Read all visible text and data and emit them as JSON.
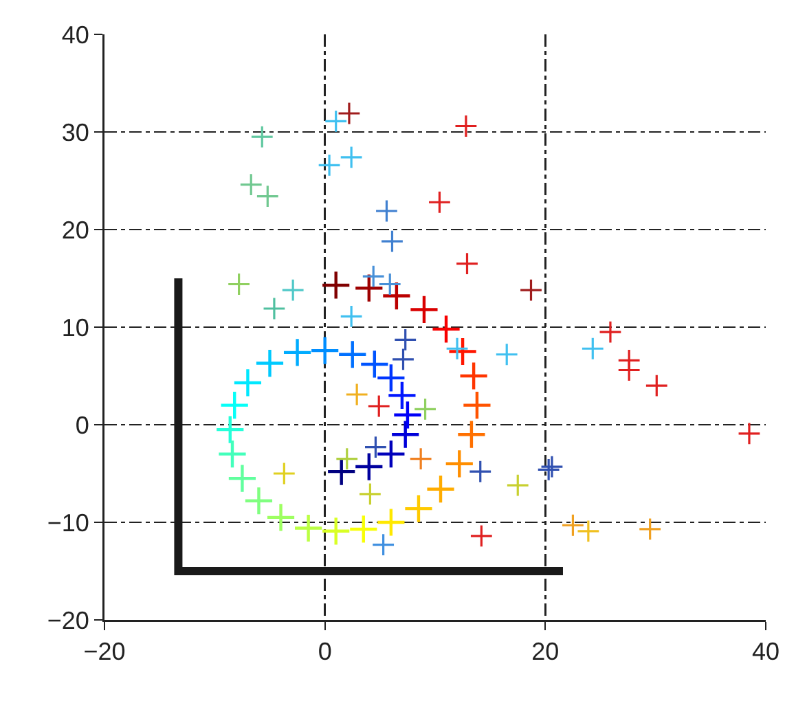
{
  "chart_data": {
    "type": "scatter",
    "marker": "cross",
    "grid": true,
    "xlim": [
      -20,
      40
    ],
    "xticks": [
      {
        "value": -20,
        "label": "−20"
      },
      0,
      20,
      40
    ],
    "ylim": [
      -20,
      40
    ],
    "yticks": [
      {
        "value": -20,
        "label": "−20"
      },
      {
        "value": -10,
        "label": "−10"
      },
      0,
      10,
      20,
      30,
      40
    ],
    "series": [
      {
        "type": "line",
        "marker": "none",
        "color": "#1a1a1a",
        "x": [
          -13.3,
          -13.3,
          21.6
        ],
        "values": [
          15,
          -15,
          -15
        ]
      },
      {
        "x": [
          1.5,
          4,
          6,
          7.3,
          7.5,
          7,
          6,
          4.5,
          2.5,
          0,
          -2.5,
          -5,
          -7,
          -8.2,
          -8.6,
          -8.4,
          -7.5,
          -6,
          -4,
          -1.5,
          1,
          3.5,
          6,
          8.5,
          10.5,
          12.2,
          13.3,
          13.8,
          13.5,
          12.5,
          11,
          9,
          6.5,
          4,
          1
        ],
        "values": [
          -4.8,
          -4.3,
          -3,
          -1,
          1,
          3,
          4.8,
          6.2,
          7.2,
          7.6,
          7.4,
          6.3,
          4.3,
          2,
          -0.5,
          -3,
          -5.5,
          -7.8,
          -9.5,
          -10.6,
          -10.9,
          -10.7,
          -10,
          -8.6,
          -6.6,
          -4,
          -1,
          2,
          5,
          7.5,
          9.8,
          11.8,
          13.2,
          14,
          14.3
        ],
        "colors": [
          "#000080",
          "#00009e",
          "#0000bb",
          "#0000d9",
          "#0000f8",
          "#0016ff",
          "#0035ff",
          "#0053ff",
          "#0070ff",
          "#008eff",
          "#00acff",
          "#00caff",
          "#00e8ff",
          "#07fff8",
          "#25ffd9",
          "#43ffbb",
          "#61ff9e",
          "#80ff80",
          "#9eff61",
          "#bbff43",
          "#d9ff25",
          "#f8ff07",
          "#ffe800",
          "#ffca00",
          "#ffac00",
          "#ff8e00",
          "#ff7000",
          "#ff5300",
          "#ff3500",
          "#ff1600",
          "#f80000",
          "#d90000",
          "#bb0000",
          "#9e0000",
          "#800000"
        ]
      },
      {
        "x": [
          2.2,
          1.0,
          -5.7,
          0.4,
          2.4,
          -6.7,
          -5.2,
          5.6,
          6.1,
          10.4,
          12.8,
          12.9,
          18.7,
          25.9,
          -7.8,
          -2.9,
          -4.6,
          2.4,
          4.4,
          5.9,
          7.3,
          7.1,
          2.9,
          4.9,
          9.1,
          4.6,
          2.0,
          8.7,
          -3.7,
          4.1,
          5.3,
          24.3,
          27.6,
          27.6,
          30.1,
          38.5,
          16.5,
          12.0,
          14.1,
          20.3,
          20.6,
          17.5,
          22.5,
          23.9,
          29.5,
          14.2
        ],
        "values": [
          31.9,
          31.1,
          29.5,
          26.6,
          27.4,
          24.6,
          23.4,
          21.9,
          18.8,
          22.8,
          30.6,
          16.5,
          13.8,
          9.5,
          14.4,
          13.8,
          11.9,
          11.1,
          15.2,
          14.4,
          8.7,
          6.7,
          3.1,
          1.9,
          1.6,
          -2.3,
          -3.5,
          -3.5,
          -5.0,
          -7.1,
          -12.3,
          7.8,
          6.6,
          5.6,
          4.0,
          -0.9,
          7.2,
          7.8,
          -4.8,
          -4.6,
          -4.3,
          -6.2,
          -10.3,
          -10.9,
          -10.7,
          -11.4
        ],
        "colors": [
          "#a01c1c",
          "#40c0f0",
          "#60c8a0",
          "#40c0f0",
          "#40c0f0",
          "#70c890",
          "#70c890",
          "#4080d0",
          "#4080d0",
          "#e02020",
          "#e02020",
          "#e02020",
          "#a01c1c",
          "#e02020",
          "#90d060",
          "#50c8c8",
          "#50c0a0",
          "#40c0f0",
          "#4890d8",
          "#4890d8",
          "#3050b0",
          "#3050b0",
          "#f0b020",
          "#e02020",
          "#90d060",
          "#3050b0",
          "#b0d040",
          "#f08020",
          "#e0d020",
          "#c8d030",
          "#4090e0",
          "#40c0f0",
          "#e02020",
          "#e02020",
          "#e02020",
          "#e02020",
          "#40c0f0",
          "#40c0f0",
          "#3050b0",
          "#3050b0",
          "#3050b0",
          "#c8d030",
          "#f0a020",
          "#f0c020",
          "#f0a020",
          "#e02020"
        ]
      }
    ]
  }
}
